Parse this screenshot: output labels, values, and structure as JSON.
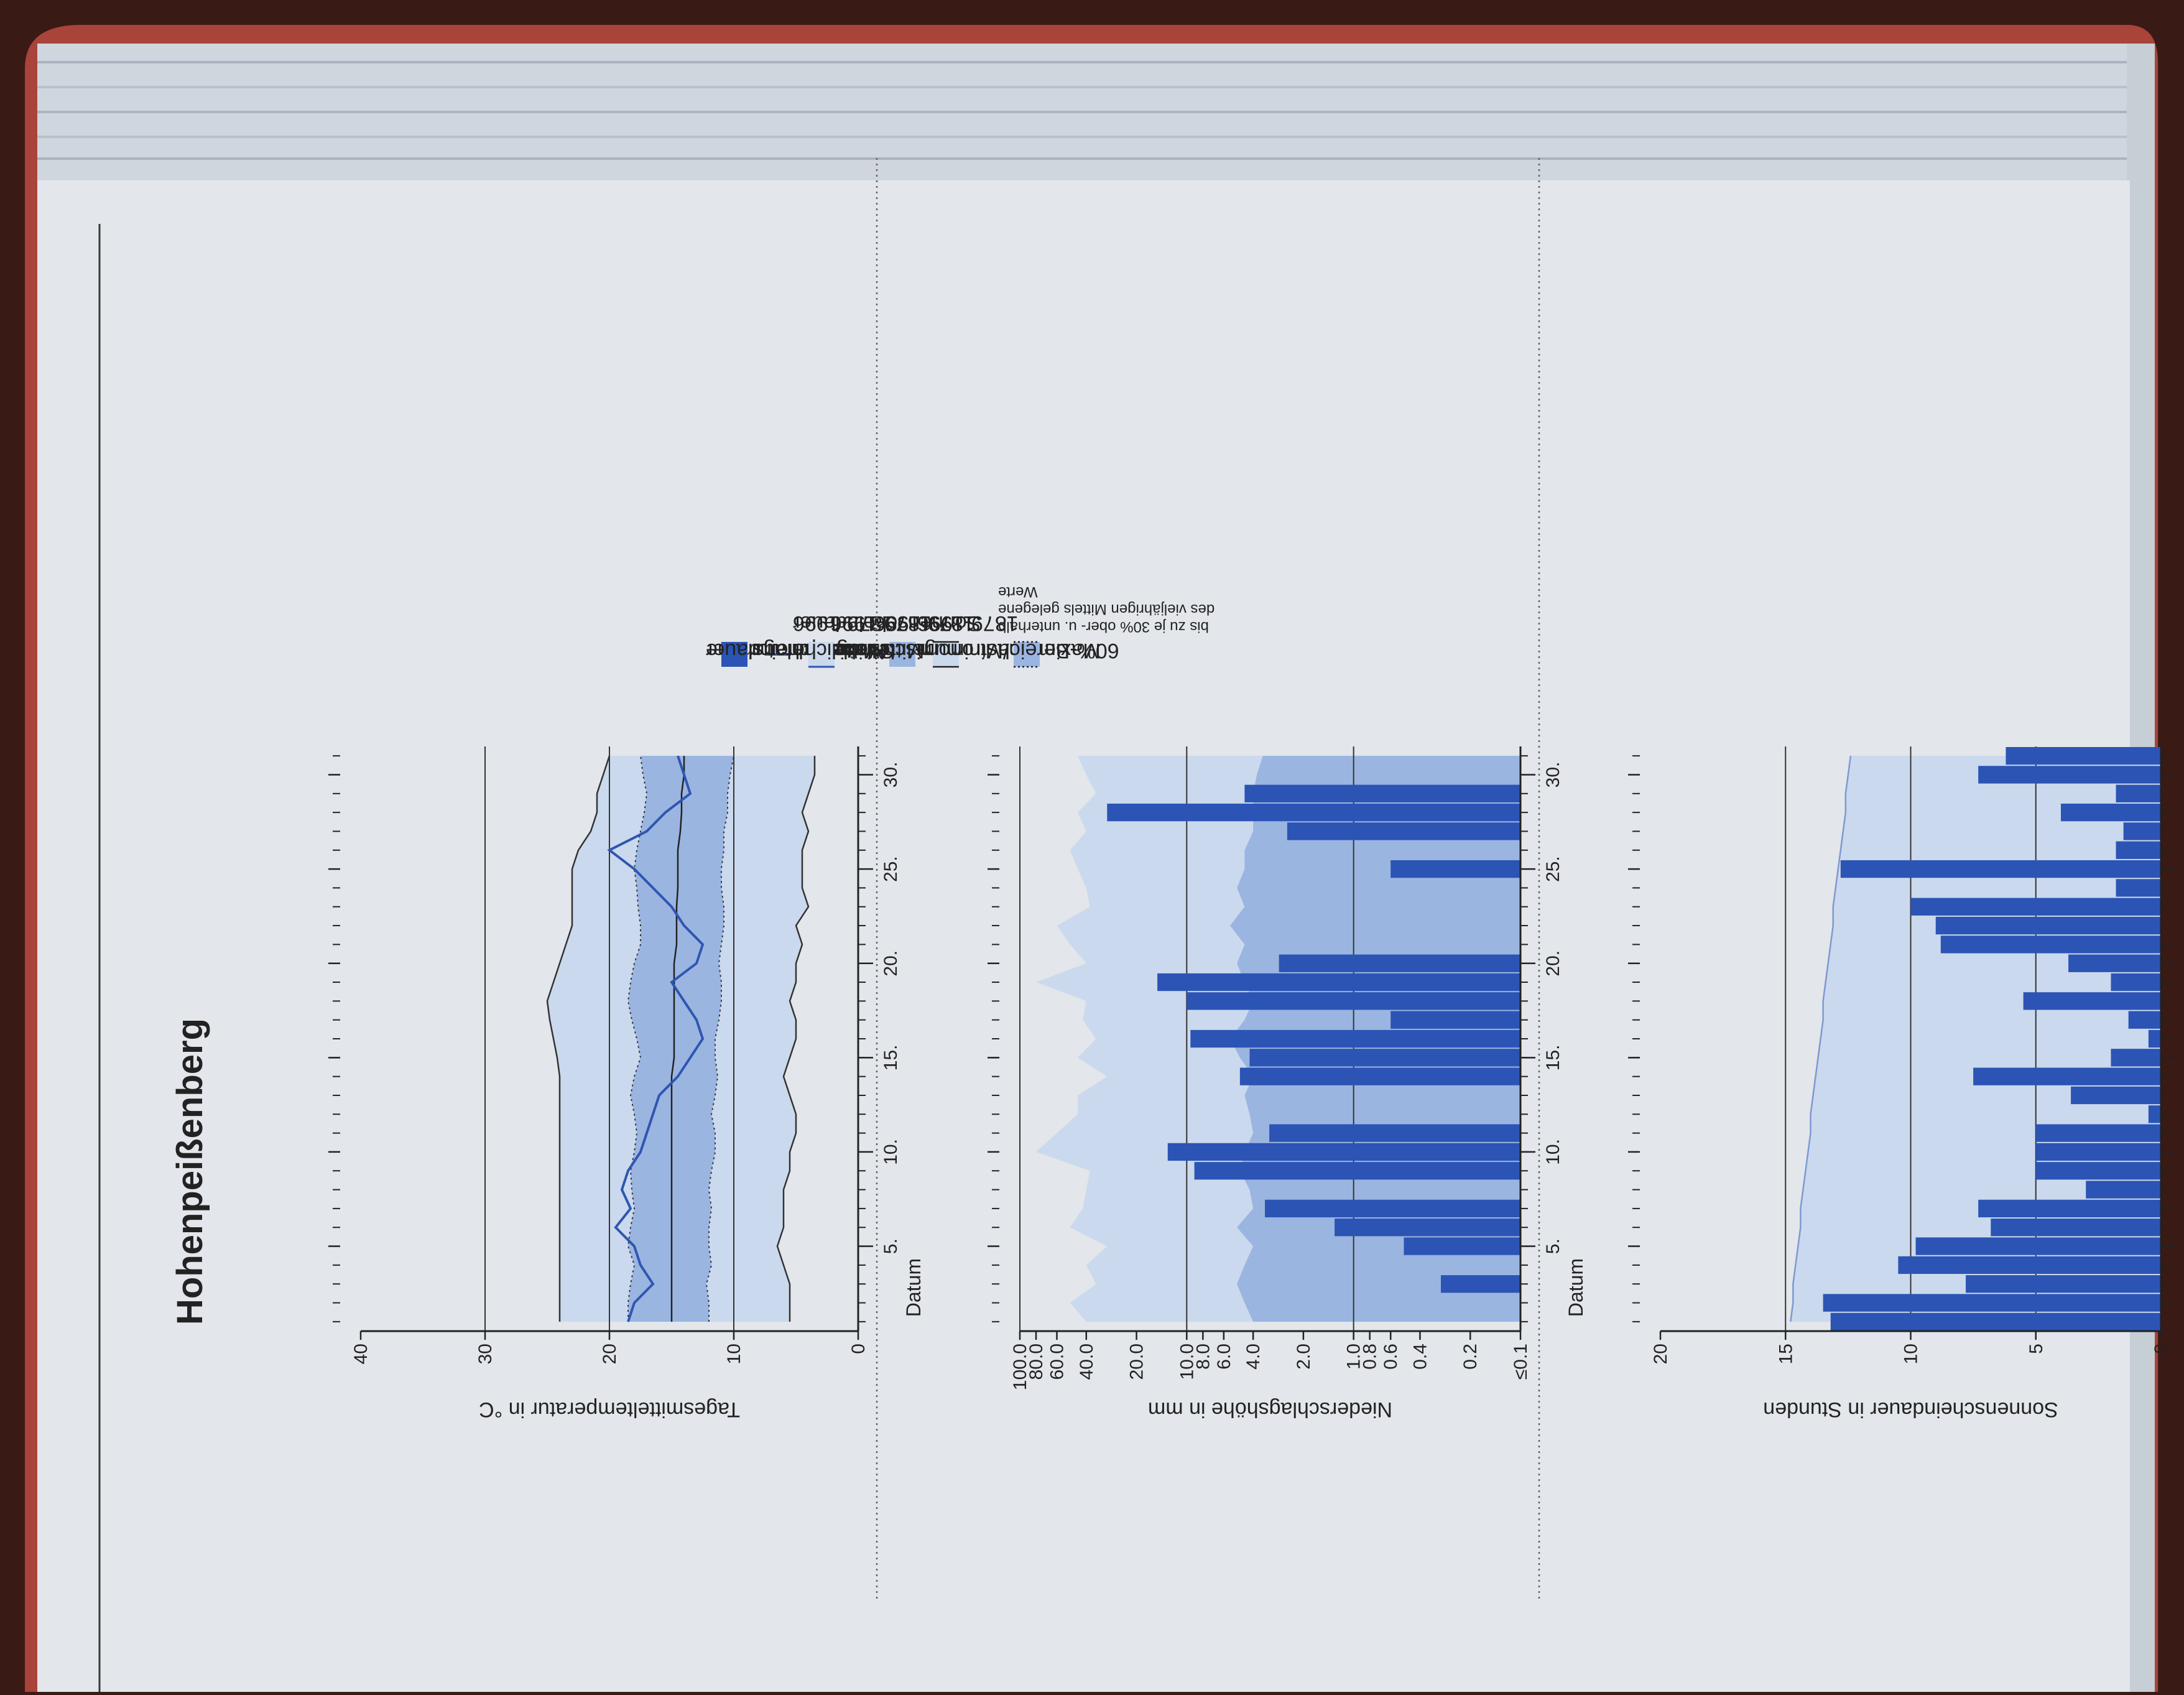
{
  "page": {
    "title": "Hohenpeißenberg"
  },
  "colors": {
    "observed": "#2f56b0",
    "observed_bar": "#2b54b4",
    "extreme_band": "#cbd9ee",
    "sixty_band": "#9bb5e1",
    "mean_band": "#9bb5e1",
    "paper": "#e3e6ea",
    "cover": "#a9443a"
  },
  "chart_data": [
    {
      "type": "line",
      "name": "temperature",
      "ylabel": "Tagesmitteltemperatur in °C",
      "xlabel": "Datum",
      "y_ticks": [
        "0",
        "10",
        "20",
        "30",
        "40"
      ],
      "ylim": [
        0,
        40
      ],
      "x_ticks": [
        "5.",
        "10.",
        "15.",
        "20.",
        "25.",
        "30."
      ],
      "xlim": [
        1,
        31
      ],
      "legend": [
        {
          "key": "obs",
          "label": "Tagesmitteltemperatur"
        },
        {
          "key": "mean",
          "label": "Mittel",
          "sub": "1879-1996"
        },
        {
          "key": "extreme",
          "label": "Maximum/Minimum",
          "sub": "1879-1996"
        },
        {
          "key": "sixty",
          "label": "60%-Bereich",
          "note": [
            "bis zu je 30% ober- u. unterhalb",
            "des vieljährigen Mittels gelegene",
            "Werte"
          ]
        }
      ],
      "days": [
        1,
        2,
        3,
        4,
        5,
        6,
        7,
        8,
        9,
        10,
        11,
        12,
        13,
        14,
        15,
        16,
        17,
        18,
        19,
        20,
        21,
        22,
        23,
        24,
        25,
        26,
        27,
        28,
        29,
        30,
        31
      ],
      "series": [
        {
          "name": "Tagesmitteltemperatur",
          "values": [
            18.5,
            18.0,
            16.5,
            17.5,
            18.0,
            19.5,
            18.3,
            19.0,
            18.5,
            17.5,
            17.0,
            16.5,
            16.0,
            14.5,
            13.5,
            12.5,
            13.0,
            14.0,
            15.0,
            13.0,
            12.5,
            14.0,
            15.0,
            16.5,
            18.0,
            20.0,
            17.0,
            15.5,
            13.5,
            14.0,
            14.5
          ]
        },
        {
          "name": "Mittel",
          "values": [
            15.0,
            15.0,
            15.0,
            15.0,
            15.0,
            15.0,
            15.0,
            15.0,
            15.0,
            15.0,
            15.0,
            15.0,
            15.0,
            15.0,
            14.8,
            14.8,
            14.8,
            14.8,
            14.8,
            14.8,
            14.6,
            14.6,
            14.6,
            14.5,
            14.5,
            14.5,
            14.3,
            14.2,
            14.2,
            14.0,
            14.0
          ]
        },
        {
          "name": "60%-Bereich oben",
          "values": [
            18.5,
            18.5,
            18.3,
            18.0,
            18.5,
            18.3,
            18.0,
            18.2,
            18.3,
            18.0,
            17.8,
            18.0,
            18.3,
            18.0,
            17.5,
            17.8,
            18.2,
            18.5,
            18.3,
            18.0,
            17.5,
            17.5,
            17.7,
            17.8,
            18.0,
            17.8,
            17.5,
            17.2,
            17.0,
            17.3,
            17.5
          ]
        },
        {
          "name": "60%-Bereich unten",
          "values": [
            12.0,
            12.0,
            12.2,
            11.8,
            12.0,
            12.0,
            11.8,
            12.0,
            11.8,
            11.5,
            11.5,
            11.8,
            11.5,
            11.3,
            11.5,
            11.5,
            11.2,
            11.0,
            11.0,
            11.2,
            11.0,
            10.8,
            10.8,
            11.0,
            11.0,
            10.8,
            10.8,
            10.5,
            10.5,
            10.3,
            10.0
          ]
        },
        {
          "name": "Maximum",
          "values": [
            24.0,
            24.0,
            24.0,
            24.0,
            24.0,
            24.0,
            24.0,
            24.0,
            24.0,
            24.0,
            24.0,
            24.0,
            24.0,
            24.0,
            24.2,
            24.5,
            24.8,
            25.0,
            24.5,
            24.0,
            23.5,
            23.0,
            23.0,
            23.0,
            23.0,
            22.5,
            21.5,
            21.0,
            21.0,
            20.5,
            20.0
          ]
        },
        {
          "name": "Minimum",
          "values": [
            5.5,
            5.5,
            5.5,
            6.0,
            6.5,
            6.0,
            6.0,
            6.0,
            5.5,
            5.5,
            5.0,
            5.0,
            5.5,
            6.0,
            5.5,
            5.0,
            5.0,
            5.5,
            5.0,
            5.0,
            4.5,
            5.0,
            4.0,
            4.5,
            4.5,
            4.5,
            4.0,
            4.5,
            4.0,
            3.5,
            3.5
          ]
        }
      ]
    },
    {
      "type": "bar",
      "name": "precipitation",
      "ylabel": "Niederschlagshöhe in mm",
      "xlabel": "Datum",
      "y_ticks": [
        "≤0.1",
        "0.2",
        "0.4",
        "0.6",
        "0.8",
        "1.0",
        "2.0",
        "4.0",
        "6.0",
        "8.0",
        "10.0",
        "20.0",
        "40.0",
        "60.0",
        "80.0",
        "100.0"
      ],
      "y_scale": "log",
      "ylim": [
        0.1,
        100
      ],
      "x_ticks": [
        "5.",
        "10.",
        "15.",
        "20.",
        "25.",
        "30."
      ],
      "xlim": [
        1,
        31
      ],
      "legend": [
        {
          "key": "obs",
          "label": "Niederschlagshöhe"
        },
        {
          "key": "max",
          "label": "Maximum",
          "sub": "1879-1996"
        },
        {
          "key": "mean",
          "label": "Mittel",
          "sub": "1879-1996"
        }
      ],
      "days": [
        1,
        2,
        3,
        4,
        5,
        6,
        7,
        8,
        9,
        10,
        11,
        12,
        13,
        14,
        15,
        16,
        17,
        18,
        19,
        20,
        21,
        22,
        23,
        24,
        25,
        26,
        27,
        28,
        29,
        30,
        31
      ],
      "series": [
        {
          "name": "Niederschlagshöhe",
          "values": [
            0,
            0,
            0.3,
            0,
            0.5,
            1.3,
            3.4,
            0,
            9.0,
            13.0,
            3.2,
            0,
            0,
            4.8,
            4.2,
            9.5,
            0.6,
            10.0,
            15.0,
            2.8,
            0,
            0,
            0,
            0,
            0.6,
            0,
            2.5,
            30.0,
            4.5,
            0,
            0
          ]
        },
        {
          "name": "Maximum",
          "values": [
            40,
            50,
            35,
            40,
            30,
            50,
            42,
            40,
            38,
            80,
            60,
            45,
            45,
            30,
            45,
            35,
            42,
            40,
            80,
            40,
            50,
            60,
            38,
            40,
            45,
            50,
            40,
            45,
            35,
            40,
            45
          ]
        },
        {
          "name": "Mittel",
          "values": [
            4.0,
            4.5,
            5.0,
            4.5,
            4.0,
            5.0,
            4.0,
            4.2,
            4.8,
            4.5,
            4.0,
            4.2,
            4.5,
            4.0,
            4.8,
            5.5,
            4.5,
            4.0,
            4.5,
            5.0,
            4.5,
            5.5,
            4.5,
            5.0,
            4.5,
            4.5,
            4.0,
            4.0,
            4.0,
            3.8,
            3.5
          ]
        }
      ]
    },
    {
      "type": "bar",
      "name": "sunshine",
      "ylabel": "Sonnenscheindauer in Stunden",
      "xlabel": "Datum",
      "y_ticks": [
        "0",
        "5",
        "10",
        "15",
        "20"
      ],
      "ylim": [
        0,
        20
      ],
      "x_ticks": [
        "5.",
        "10.",
        "15.",
        "20.",
        "25.",
        "30."
      ],
      "xlim": [
        1,
        31
      ],
      "legend": [
        {
          "key": "obs",
          "label": "Sonnenscheindauer"
        },
        {
          "key": "astro",
          "label": "astronomisch mögliche",
          "sub": "Sonnenscheindauer"
        }
      ],
      "days": [
        1,
        2,
        3,
        4,
        5,
        6,
        7,
        8,
        9,
        10,
        11,
        12,
        13,
        14,
        15,
        16,
        17,
        18,
        19,
        20,
        21,
        22,
        23,
        24,
        25,
        26,
        27,
        28,
        29,
        30,
        31
      ],
      "series": [
        {
          "name": "Sonnenscheindauer",
          "values": [
            13.2,
            13.5,
            7.8,
            10.5,
            9.8,
            6.8,
            7.3,
            3.0,
            5.0,
            5.0,
            5.0,
            0.5,
            3.6,
            7.5,
            2.0,
            0.5,
            1.3,
            5.5,
            2.0,
            3.7,
            8.8,
            9.0,
            10.0,
            1.8,
            12.8,
            1.8,
            1.5,
            4.0,
            1.8,
            7.3,
            6.2
          ]
        },
        {
          "name": "astronomisch mögliche Sonnenscheindauer",
          "values": [
            14.8,
            14.7,
            14.7,
            14.6,
            14.5,
            14.4,
            14.4,
            14.3,
            14.2,
            14.1,
            14.0,
            14.0,
            13.9,
            13.8,
            13.7,
            13.6,
            13.5,
            13.5,
            13.4,
            13.3,
            13.2,
            13.1,
            13.1,
            13.0,
            12.9,
            12.8,
            12.7,
            12.6,
            12.6,
            12.5,
            12.4
          ]
        }
      ]
    }
  ]
}
